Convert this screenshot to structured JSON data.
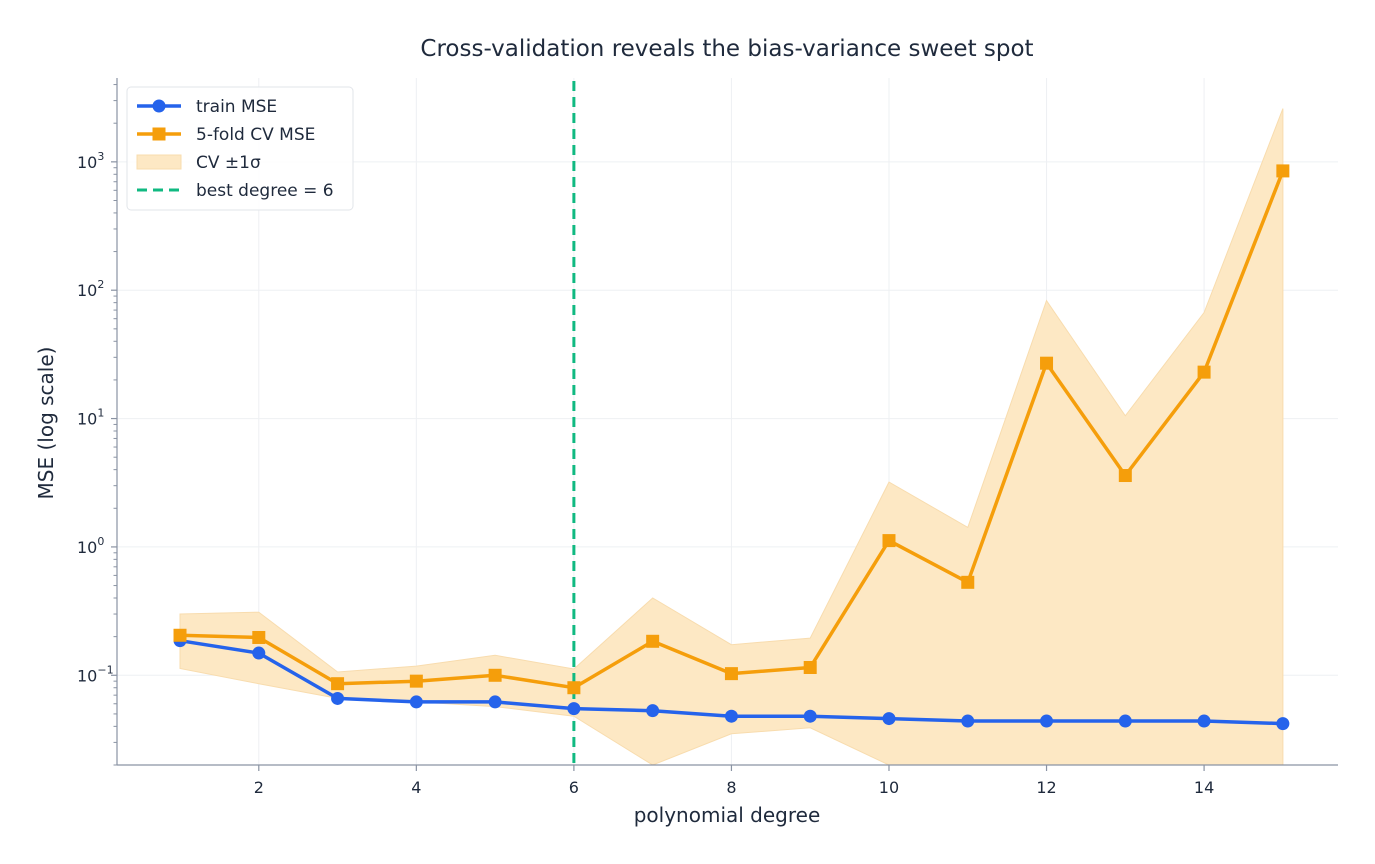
{
  "chart_data": {
    "type": "line",
    "title": "Cross-validation reveals the bias-variance sweet spot",
    "xlabel": "polynomial degree",
    "ylabel": "MSE  (log scale)",
    "x": [
      1,
      2,
      3,
      4,
      5,
      6,
      7,
      8,
      9,
      10,
      11,
      12,
      13,
      14,
      15
    ],
    "xlim": [
      0.2,
      15.7
    ],
    "ylim": [
      0.02,
      4500
    ],
    "yscale": "log",
    "x_ticks": [
      2,
      4,
      6,
      8,
      10,
      12,
      14
    ],
    "y_ticks": [
      {
        "value": 0.1,
        "base": "10",
        "exp": "−1"
      },
      {
        "value": 1,
        "base": "10",
        "exp": "0"
      },
      {
        "value": 10,
        "base": "10",
        "exp": "1"
      },
      {
        "value": 100,
        "base": "10",
        "exp": "2"
      },
      {
        "value": 1000,
        "base": "10",
        "exp": "3"
      }
    ],
    "grid": true,
    "legend_position": "top-left",
    "series": [
      {
        "name": "train MSE",
        "color": "#2563eb",
        "marker": "circle",
        "values": [
          0.186,
          0.149,
          0.066,
          0.062,
          0.062,
          0.055,
          0.053,
          0.048,
          0.048,
          0.046,
          0.044,
          0.044,
          0.044,
          0.044,
          0.042
        ]
      },
      {
        "name": "5-fold CV MSE",
        "color": "#f59e0b",
        "marker": "square",
        "values": [
          0.205,
          0.197,
          0.086,
          0.09,
          0.1,
          0.08,
          0.184,
          0.103,
          0.115,
          1.12,
          0.53,
          27,
          3.6,
          23,
          850
        ]
      }
    ],
    "band": {
      "name": "CV ±1σ",
      "color": "#fde8c4",
      "upper": [
        0.3,
        0.31,
        0.106,
        0.118,
        0.143,
        0.112,
        0.4,
        0.173,
        0.195,
        3.2,
        1.42,
        83,
        10.5,
        67,
        2600
      ],
      "lower": [
        0.113,
        0.086,
        0.066,
        0.062,
        0.057,
        0.048,
        0.02,
        0.035,
        0.039,
        0.02,
        0.02,
        0.02,
        0.02,
        0.02,
        0.02
      ]
    },
    "vline": {
      "x": 6,
      "name": "best degree = 6",
      "color": "#10b981"
    }
  }
}
